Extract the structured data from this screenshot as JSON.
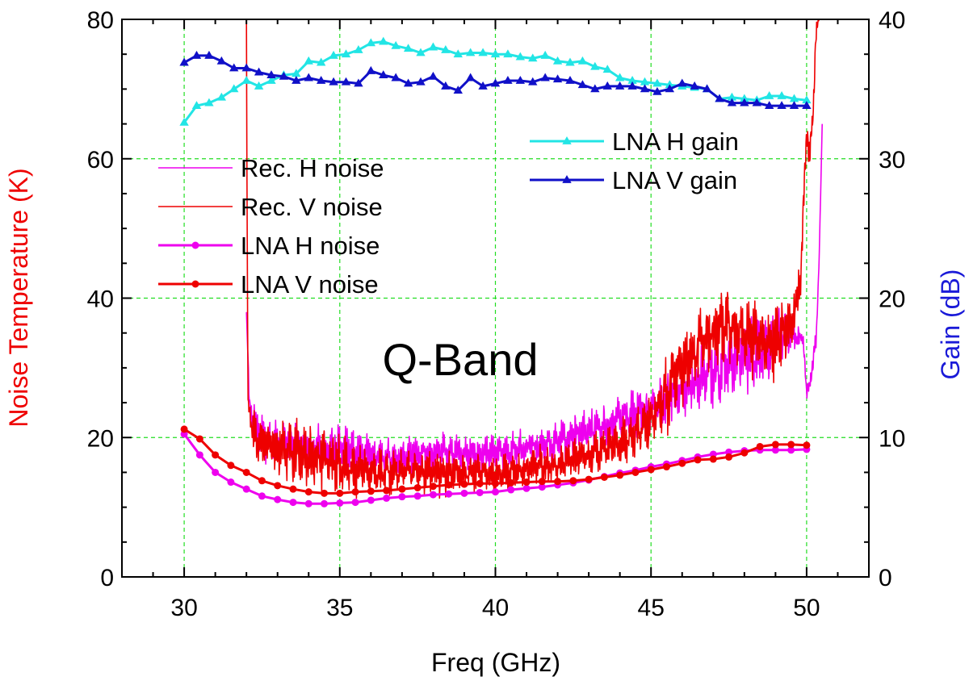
{
  "chart_data": {
    "type": "line",
    "title": "",
    "annotation": "Q-Band",
    "xlabel": "Freq (GHz)",
    "ylabel_left": "Noise Temperature (K)",
    "ylabel_right": "Gain (dB)",
    "xlim": [
      28,
      52
    ],
    "ylim_left": [
      0,
      80
    ],
    "ylim_right": [
      0,
      40
    ],
    "x_ticks": [
      30,
      35,
      40,
      45,
      50
    ],
    "x_tick_labels": [
      "30",
      "35",
      "40",
      "45",
      "50"
    ],
    "y_left_ticks": [
      0,
      20,
      40,
      60,
      80
    ],
    "y_left_tick_labels": [
      "0",
      "20",
      "40",
      "60",
      "80"
    ],
    "y_right_ticks": [
      0,
      10,
      20,
      30,
      40
    ],
    "y_right_tick_labels": [
      "0",
      "10",
      "20",
      "30",
      "40"
    ],
    "grid": true,
    "colors": {
      "rec_h": "#ee00ee",
      "rec_v": "#ee0000",
      "lna_h_noise": "#ee00ee",
      "lna_v_noise": "#ee0000",
      "lna_h_gain": "#22e5e5",
      "lna_v_gain": "#1010c8",
      "grid": "#22dd22",
      "left_axis_title": "#ee0000",
      "right_axis_title": "#1a1ad8"
    },
    "legend_noise": [
      {
        "key": "rec_h",
        "label": "Rec. H noise",
        "marker": "none"
      },
      {
        "key": "rec_v",
        "label": "Rec. V noise",
        "marker": "none"
      },
      {
        "key": "lna_h_noise",
        "label": "LNA H noise",
        "marker": "circle"
      },
      {
        "key": "lna_v_noise",
        "label": "LNA V noise",
        "marker": "circle"
      }
    ],
    "legend_gain": [
      {
        "key": "lna_h_gain",
        "label": "LNA H gain",
        "marker": "triangle"
      },
      {
        "key": "lna_v_gain",
        "label": "LNA V gain",
        "marker": "triangle"
      }
    ],
    "series": [
      {
        "key": "lna_h_noise",
        "name": "LNA H noise",
        "axis": "left",
        "marker": "circle",
        "x": [
          30,
          30.5,
          31,
          31.5,
          32,
          32.5,
          33,
          33.5,
          34,
          34.5,
          35,
          35.5,
          36,
          36.5,
          37,
          37.5,
          38,
          38.5,
          39,
          39.5,
          40,
          40.5,
          41,
          41.5,
          42,
          42.5,
          43,
          43.5,
          44,
          44.5,
          45,
          45.5,
          46,
          46.5,
          47,
          47.5,
          48,
          48.5,
          49,
          49.5,
          50
        ],
        "y": [
          20.5,
          17.5,
          15.0,
          13.6,
          12.6,
          11.6,
          11.1,
          10.7,
          10.5,
          10.5,
          10.6,
          10.7,
          11.0,
          11.3,
          11.5,
          11.6,
          11.8,
          11.9,
          12.0,
          12.1,
          12.2,
          12.5,
          12.7,
          12.9,
          13.2,
          13.5,
          13.9,
          14.4,
          14.9,
          15.3,
          15.8,
          16.2,
          16.7,
          17.2,
          17.6,
          17.9,
          18.1,
          18.2,
          18.2,
          18.2,
          18.3
        ]
      },
      {
        "key": "lna_v_noise",
        "name": "LNA V noise",
        "axis": "left",
        "marker": "circle",
        "x": [
          30,
          30.5,
          31,
          31.5,
          32,
          32.5,
          33,
          33.5,
          34,
          34.5,
          35,
          35.5,
          36,
          36.5,
          37,
          37.5,
          38,
          38.5,
          39,
          39.5,
          40,
          40.5,
          41,
          41.5,
          42,
          42.5,
          43,
          43.5,
          44,
          44.5,
          45,
          45.5,
          46,
          46.5,
          47,
          47.5,
          48,
          48.5,
          49,
          49.5,
          50
        ],
        "y": [
          21.2,
          19.8,
          17.5,
          16.0,
          15.0,
          13.8,
          13.1,
          12.6,
          12.2,
          12.0,
          12.0,
          12.2,
          12.3,
          12.4,
          12.6,
          12.8,
          13.0,
          13.2,
          13.3,
          13.4,
          13.4,
          13.5,
          13.6,
          13.7,
          13.7,
          13.8,
          14.0,
          14.3,
          14.6,
          15.0,
          15.4,
          15.8,
          16.3,
          16.8,
          16.9,
          17.2,
          17.8,
          18.7,
          19.0,
          19.0,
          18.9
        ]
      },
      {
        "key": "lna_h_gain",
        "name": "LNA H gain",
        "axis": "right",
        "marker": "triangle",
        "x": [
          30,
          30.4,
          30.8,
          31.2,
          31.6,
          32,
          32.4,
          32.8,
          33.2,
          33.6,
          34,
          34.4,
          34.8,
          35.2,
          35.6,
          36,
          36.4,
          36.8,
          37.2,
          37.6,
          38,
          38.4,
          38.8,
          39.2,
          39.6,
          40,
          40.4,
          40.8,
          41.2,
          41.6,
          42,
          42.4,
          42.8,
          43.2,
          43.6,
          44,
          44.4,
          44.8,
          45.2,
          45.6,
          46,
          46.4,
          46.8,
          47.2,
          47.6,
          48,
          48.4,
          48.8,
          49.2,
          49.6,
          50
        ],
        "y": [
          32.6,
          33.8,
          34.0,
          34.4,
          35.0,
          35.6,
          35.2,
          35.6,
          36.0,
          36.1,
          37.0,
          36.9,
          37.4,
          37.5,
          37.8,
          38.3,
          38.4,
          38.1,
          37.9,
          37.6,
          38.0,
          37.8,
          37.5,
          37.6,
          37.6,
          37.5,
          37.5,
          37.3,
          37.2,
          37.4,
          37.0,
          36.9,
          37.0,
          36.6,
          36.4,
          35.8,
          35.6,
          35.5,
          35.4,
          35.3,
          35.2,
          35.1,
          35.0,
          34.3,
          34.4,
          34.3,
          34.2,
          34.5,
          34.5,
          34.3,
          34.2
        ]
      },
      {
        "key": "lna_v_gain",
        "name": "LNA V gain",
        "axis": "right",
        "marker": "triangle",
        "x": [
          30,
          30.4,
          30.8,
          31.2,
          31.6,
          32,
          32.4,
          32.8,
          33.2,
          33.6,
          34,
          34.4,
          34.8,
          35.2,
          35.6,
          36,
          36.4,
          36.8,
          37.2,
          37.6,
          38,
          38.4,
          38.8,
          39.2,
          39.6,
          40,
          40.4,
          40.8,
          41.2,
          41.6,
          42,
          42.4,
          42.8,
          43.2,
          43.6,
          44,
          44.4,
          44.8,
          45.2,
          45.6,
          46,
          46.4,
          46.8,
          47.2,
          47.6,
          48,
          48.4,
          48.8,
          49.2,
          49.6,
          50
        ],
        "y": [
          36.9,
          37.4,
          37.4,
          37.0,
          36.5,
          36.5,
          36.2,
          36.0,
          35.9,
          35.6,
          35.8,
          35.6,
          35.5,
          35.5,
          35.4,
          36.3,
          36.0,
          35.8,
          35.4,
          35.5,
          35.9,
          35.2,
          34.9,
          35.8,
          35.2,
          35.4,
          35.6,
          35.6,
          35.5,
          35.8,
          35.7,
          35.6,
          35.3,
          35.0,
          35.2,
          35.2,
          35.2,
          35.0,
          34.8,
          35.0,
          35.4,
          35.2,
          35.0,
          34.3,
          34.0,
          34.0,
          34.0,
          33.8,
          33.8,
          33.8,
          33.8
        ]
      },
      {
        "key": "rec_h",
        "name": "Rec. H noise",
        "axis": "left",
        "marker": "none",
        "x": [
          32,
          32.1,
          32.5,
          33,
          33.5,
          34,
          34.5,
          35,
          35.5,
          36,
          36.5,
          37,
          37.5,
          38,
          38.5,
          39,
          39.5,
          40,
          40.5,
          41,
          41.5,
          42,
          42.5,
          43,
          43.5,
          44,
          44.5,
          45,
          45.5,
          46,
          46.5,
          47,
          47.5,
          48,
          48.5,
          49,
          49.5,
          49.9,
          50.0,
          50.2,
          50.3,
          50.4,
          50.5
        ],
        "y": [
          38,
          24,
          20,
          19,
          19.2,
          18.5,
          18.5,
          18.5,
          18,
          17.5,
          17,
          17.5,
          17.5,
          17.8,
          18,
          17.5,
          17.5,
          17.5,
          18,
          18.5,
          19,
          19.5,
          20.5,
          21,
          21.5,
          22.5,
          23.5,
          24,
          25.5,
          27,
          28,
          29.5,
          31,
          31.5,
          32.5,
          34,
          35,
          34.0,
          26,
          30,
          34,
          45,
          65
        ],
        "amp": [
          0,
          2,
          3,
          3,
          3,
          3,
          3,
          3,
          3,
          2.5,
          2.5,
          2.5,
          2.5,
          2.5,
          2.5,
          2.5,
          2.5,
          2.5,
          2.5,
          2.5,
          2.5,
          2.5,
          3,
          3,
          3,
          3,
          3,
          3,
          3.5,
          3.5,
          4,
          4.5,
          4.5,
          4.5,
          4.5,
          4.5,
          3,
          1,
          1,
          1.5,
          2,
          0,
          0
        ]
      },
      {
        "key": "rec_v",
        "name": "Rec. V noise",
        "axis": "left",
        "marker": "none",
        "x": [
          32,
          32.01,
          32.05,
          32.2,
          32.5,
          33,
          33.5,
          34,
          34.5,
          35,
          35.5,
          36,
          36.5,
          37,
          37.5,
          38,
          38.5,
          39,
          39.5,
          40,
          40.5,
          41,
          41.5,
          42,
          42.5,
          43,
          43.5,
          44,
          44.5,
          45,
          45.5,
          46,
          46.5,
          47,
          47.5,
          48,
          48.5,
          49,
          49.5,
          49.8,
          50.0,
          50.1,
          50.2,
          50.3,
          50.4
        ],
        "y": [
          80,
          64,
          25,
          21,
          19,
          18.5,
          18,
          17.5,
          17,
          16,
          15.5,
          15,
          15,
          15.5,
          15,
          15,
          15,
          15,
          15,
          15,
          15,
          15.5,
          16,
          16,
          17,
          17.5,
          18.5,
          19,
          20.5,
          22.5,
          26,
          30,
          33,
          35,
          36,
          34.5,
          34,
          33.5,
          36,
          42,
          64,
          60,
          66,
          78,
          80
        ],
        "amp": [
          0,
          0,
          1,
          3,
          3.5,
          4,
          4,
          4,
          4,
          4,
          3.5,
          3,
          3,
          3,
          3,
          3,
          3,
          2.5,
          2.5,
          2.5,
          2.5,
          2.5,
          2.5,
          2.5,
          2.5,
          2.5,
          2.5,
          3,
          3,
          4,
          5,
          5,
          5,
          5,
          5,
          5,
          5,
          5,
          4,
          3,
          2,
          2,
          2,
          2,
          0
        ]
      }
    ]
  }
}
